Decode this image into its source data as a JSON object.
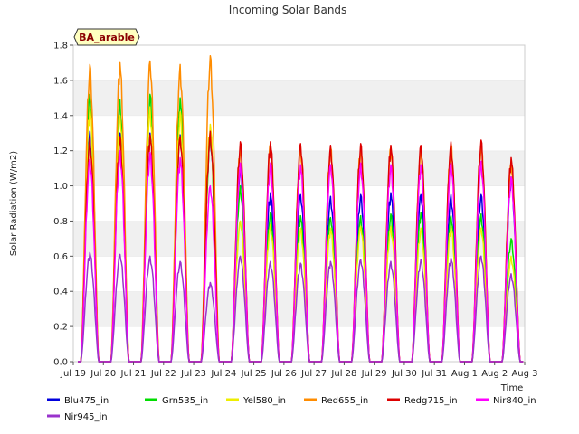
{
  "chart_data": {
    "type": "line",
    "title": "Incoming Solar Bands",
    "xlabel": "Time",
    "ylabel": "Solar Radiation (W/m2)",
    "site_label": "BA_arable",
    "ylim": [
      0.0,
      1.8
    ],
    "yticks": [
      "0.0",
      "0.2",
      "0.4",
      "0.6",
      "0.8",
      "1.0",
      "1.2",
      "1.4",
      "1.6",
      "1.8"
    ],
    "xlim": [
      "2024-07-19",
      "2024-08-03"
    ],
    "xticks": [
      "Jul 19",
      "Jul 20",
      "Jul 21",
      "Jul 22",
      "Jul 23",
      "Jul 24",
      "Jul 25",
      "Jul 26",
      "Jul 27",
      "Jul 28",
      "Jul 29",
      "Jul 30",
      "Jul 31",
      "Aug 1",
      "Aug 2",
      "Aug 3"
    ],
    "grid": "horizontal bands",
    "legend_position": "bottom",
    "days": [
      "2024-07-19",
      "2024-07-20",
      "2024-07-21",
      "2024-07-22",
      "2024-07-23",
      "2024-07-24",
      "2024-07-25",
      "2024-07-26",
      "2024-07-27",
      "2024-07-28",
      "2024-07-29",
      "2024-07-30",
      "2024-07-31",
      "2024-08-01",
      "2024-08-02"
    ],
    "series": [
      {
        "name": "Blu475_in",
        "color": "#0000dd",
        "daily_peak": [
          1.31,
          1.3,
          1.3,
          1.29,
          1.3,
          1.12,
          0.96,
          0.95,
          0.94,
          0.95,
          0.96,
          0.95,
          0.95,
          0.95,
          1.05
        ]
      },
      {
        "name": "Grn535_in",
        "color": "#00dd00",
        "daily_peak": [
          1.52,
          1.49,
          1.52,
          1.5,
          1.28,
          1.0,
          0.85,
          0.83,
          0.82,
          0.83,
          0.84,
          0.85,
          0.83,
          0.84,
          0.7
        ]
      },
      {
        "name": "Yel580_in",
        "color": "#eeee00",
        "daily_peak": [
          1.45,
          1.4,
          1.45,
          1.42,
          1.35,
          0.8,
          0.78,
          0.76,
          0.76,
          0.77,
          0.77,
          0.76,
          0.77,
          0.76,
          0.6
        ]
      },
      {
        "name": "Red655_in",
        "color": "#ff8c00",
        "daily_peak": [
          1.69,
          1.7,
          1.71,
          1.69,
          1.74,
          1.22,
          1.24,
          1.23,
          1.22,
          1.22,
          1.22,
          1.22,
          1.24,
          1.24,
          1.13
        ]
      },
      {
        "name": "Redg715_in",
        "color": "#dd0000",
        "daily_peak": [
          1.27,
          1.28,
          1.29,
          1.28,
          1.31,
          1.25,
          1.25,
          1.24,
          1.23,
          1.24,
          1.23,
          1.23,
          1.25,
          1.26,
          1.16
        ]
      },
      {
        "name": "Nir840_in",
        "color": "#ff00ff",
        "daily_peak": [
          1.15,
          1.2,
          1.19,
          1.16,
          1.0,
          1.13,
          1.13,
          1.12,
          1.12,
          1.13,
          1.12,
          1.12,
          1.13,
          1.14,
          1.05
        ]
      },
      {
        "name": "Nir945_in",
        "color": "#9933cc",
        "daily_peak": [
          0.62,
          0.61,
          0.6,
          0.57,
          0.45,
          0.6,
          0.57,
          0.56,
          0.57,
          0.58,
          0.57,
          0.58,
          0.59,
          0.6,
          0.5
        ]
      }
    ]
  }
}
